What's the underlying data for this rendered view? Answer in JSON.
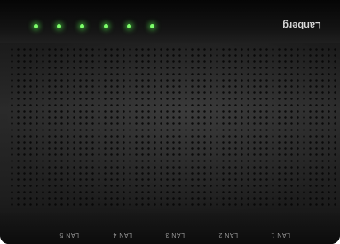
{
  "brand": "Lanberg",
  "ports": [
    "LAN 5",
    "LAN 4",
    "LAN 3",
    "LAN 2",
    "LAN 1"
  ]
}
